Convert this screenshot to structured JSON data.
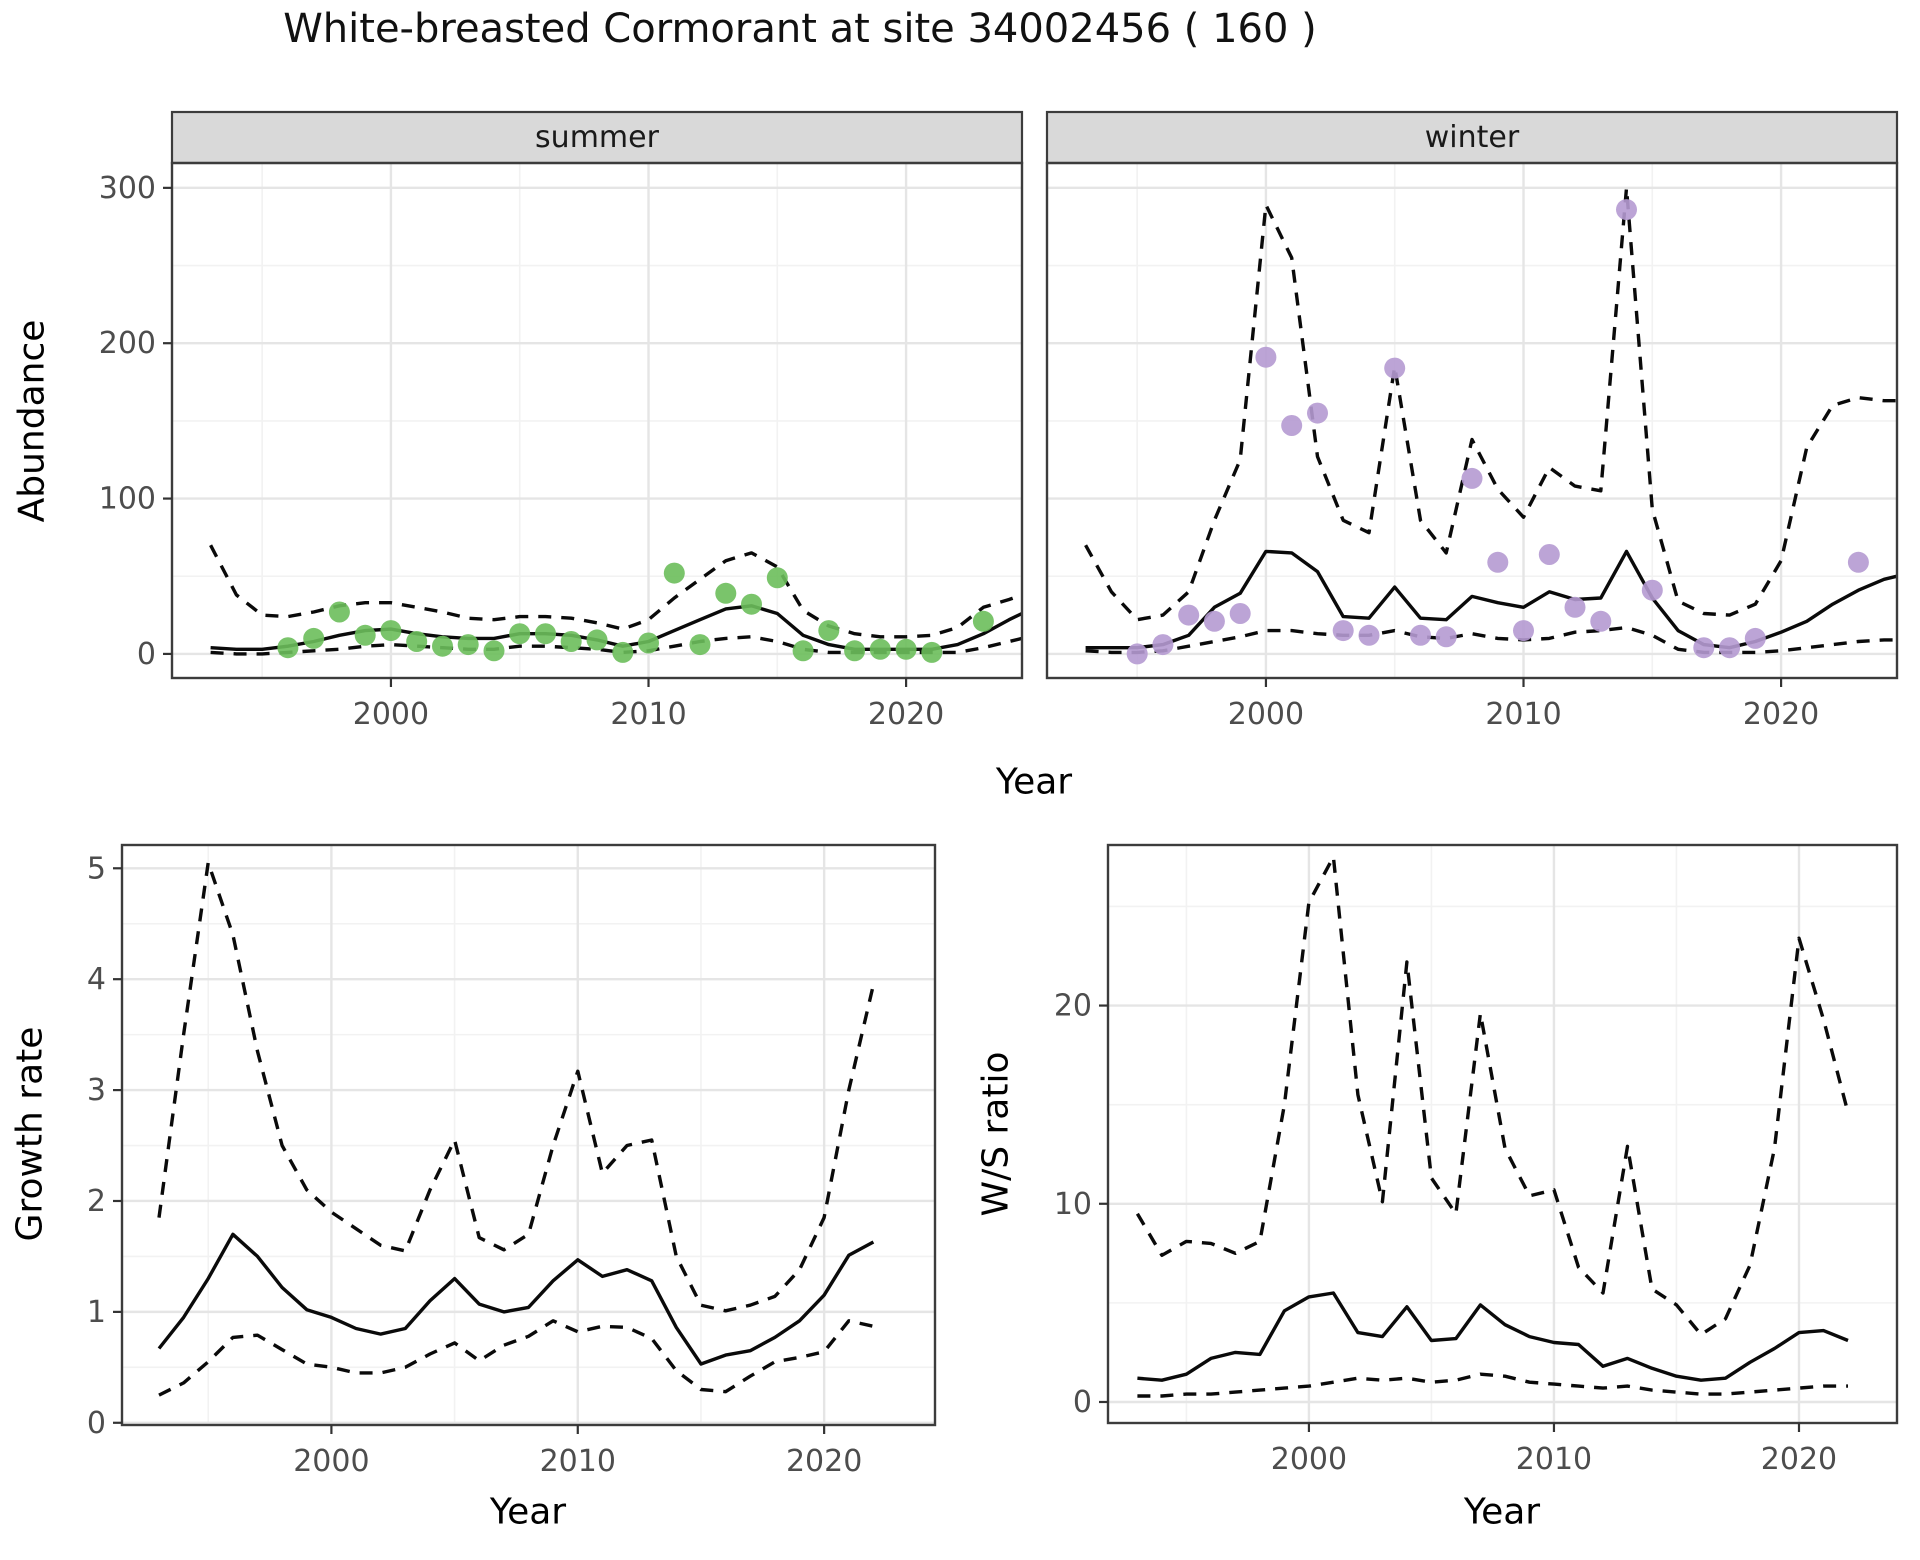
{
  "title": "White-breasted Cormorant at site 34002456 ( 160 )",
  "colors": {
    "summer_points": "#6CBE5B",
    "winter_points": "#B59AD2",
    "line": "#0a0a0a",
    "strip_fill": "#D9D9D9",
    "panel_border": "#3c3c3c",
    "grid_major": "#E5E5E5",
    "grid_minor": "#F2F2F2",
    "tick_text": "#4d4d4d"
  },
  "top_xlabel": "Year",
  "chart_data": {
    "type": "line",
    "description": "Four-panel population trend figure: seasonal abundance (observed points, modelled median solid line, dashed 95% credible band), growth rate and winter/summer ratio",
    "panels": [
      {
        "id": "abundance-summer",
        "facet_label": "summer",
        "ylabel": "Abundance",
        "xlabel": "Year",
        "xlim": [
          1991.5,
          2024.5
        ],
        "ylim": [
          -15.5,
          316
        ],
        "xticks": [
          2000,
          2010,
          2020
        ],
        "yticks": [
          0,
          100,
          200,
          300
        ],
        "x_minor": [
          1995,
          2005,
          2015
        ],
        "y_minor": [
          50,
          150,
          250
        ],
        "show_y_labels": true,
        "point_color": "#6CBE5B",
        "observations": {
          "years": [
            1996,
            1997,
            1998,
            1999,
            2000,
            2001,
            2002,
            2003,
            2004,
            2005,
            2006,
            2007,
            2008,
            2009,
            2010,
            2011,
            2012,
            2013,
            2014,
            2015,
            2016,
            2017,
            2018,
            2019,
            2020,
            2021,
            2023
          ],
          "values": [
            4,
            10,
            27,
            12,
            15,
            8,
            5,
            6,
            2,
            13,
            13,
            8,
            9,
            1,
            7,
            52,
            6,
            39,
            32,
            49,
            2,
            15,
            2,
            3,
            3,
            1,
            21
          ]
        },
        "median": {
          "years": [
            1993,
            1994,
            1995,
            1996,
            1997,
            1998,
            1999,
            2000,
            2001,
            2002,
            2003,
            2004,
            2005,
            2006,
            2007,
            2008,
            2009,
            2010,
            2011,
            2012,
            2013,
            2014,
            2015,
            2016,
            2017,
            2018,
            2019,
            2020,
            2021,
            2022,
            2023,
            2024,
            2024.5
          ],
          "values": [
            4,
            3,
            3,
            5,
            8,
            12,
            15,
            16,
            13,
            11,
            10,
            10,
            13,
            13,
            12,
            9,
            5,
            8,
            15,
            22,
            29,
            31,
            26,
            12,
            6,
            3,
            3,
            3,
            3,
            6,
            13,
            22,
            26
          ]
        },
        "ci_upper": {
          "years": [
            1993,
            1994,
            1995,
            1996,
            1997,
            1998,
            1999,
            2000,
            2001,
            2002,
            2003,
            2004,
            2005,
            2006,
            2007,
            2008,
            2009,
            2010,
            2011,
            2012,
            2013,
            2014,
            2015,
            2016,
            2017,
            2018,
            2019,
            2020,
            2021,
            2022,
            2023,
            2024,
            2024.5
          ],
          "values": [
            70,
            38,
            25,
            24,
            27,
            31,
            33,
            33,
            30,
            27,
            23,
            22,
            24,
            24,
            23,
            20,
            16,
            22,
            36,
            48,
            60,
            65,
            56,
            28,
            18,
            13,
            11,
            11,
            12,
            17,
            30,
            35,
            38
          ]
        },
        "ci_lower": {
          "years": [
            1993,
            1994,
            1995,
            1996,
            1997,
            1998,
            1999,
            2000,
            2001,
            2002,
            2003,
            2004,
            2005,
            2006,
            2007,
            2008,
            2009,
            2010,
            2011,
            2012,
            2013,
            2014,
            2015,
            2016,
            2017,
            2018,
            2019,
            2020,
            2021,
            2022,
            2023,
            2024,
            2024.5
          ],
          "values": [
            1,
            0,
            0,
            1,
            2,
            3,
            5,
            6,
            5,
            4,
            3,
            3,
            5,
            5,
            4,
            3,
            1,
            2,
            5,
            8,
            10,
            11,
            8,
            3,
            1,
            1,
            1,
            1,
            1,
            1,
            4,
            8,
            10
          ]
        }
      },
      {
        "id": "abundance-winter",
        "facet_label": "winter",
        "ylabel": "Abundance",
        "xlabel": "Year",
        "xlim": [
          1991.5,
          2024.5
        ],
        "ylim": [
          -15.5,
          316
        ],
        "xticks": [
          2000,
          2010,
          2020
        ],
        "yticks": [
          0,
          100,
          200,
          300
        ],
        "x_minor": [
          1995,
          2005,
          2015
        ],
        "y_minor": [
          50,
          150,
          250
        ],
        "show_y_labels": false,
        "point_color": "#B59AD2",
        "observations": {
          "years": [
            1995,
            1996,
            1997,
            1998,
            1999,
            2000,
            2001,
            2002,
            2003,
            2004,
            2005,
            2006,
            2007,
            2008,
            2009,
            2010,
            2011,
            2012,
            2013,
            2014,
            2015,
            2017,
            2018,
            2019,
            2023
          ],
          "values": [
            0,
            6,
            25,
            21,
            26,
            191,
            147,
            155,
            15,
            12,
            184,
            12,
            11,
            113,
            59,
            15,
            64,
            30,
            21,
            286,
            41,
            4,
            4,
            10,
            59
          ]
        },
        "median": {
          "years": [
            1993,
            1994,
            1995,
            1996,
            1997,
            1998,
            1999,
            2000,
            2001,
            2002,
            2003,
            2004,
            2005,
            2006,
            2007,
            2008,
            2009,
            2010,
            2011,
            2012,
            2013,
            2014,
            2015,
            2016,
            2017,
            2018,
            2019,
            2020,
            2021,
            2022,
            2023,
            2024,
            2024.5
          ],
          "values": [
            4,
            4,
            4,
            6,
            12,
            30,
            39,
            66,
            65,
            53,
            24,
            23,
            43,
            23,
            22,
            37,
            33,
            30,
            40,
            35,
            36,
            66,
            36,
            15,
            6,
            4,
            8,
            14,
            21,
            32,
            41,
            48,
            50
          ]
        },
        "ci_upper": {
          "years": [
            1993,
            1994,
            1995,
            1996,
            1997,
            1998,
            1999,
            2000,
            2001,
            2002,
            2003,
            2004,
            2005,
            2006,
            2007,
            2008,
            2009,
            2010,
            2011,
            2012,
            2013,
            2014,
            2015,
            2016,
            2017,
            2018,
            2019,
            2020,
            2021,
            2022,
            2023,
            2024,
            2024.5
          ],
          "values": [
            70,
            40,
            22,
            25,
            40,
            86,
            125,
            289,
            255,
            127,
            86,
            78,
            185,
            86,
            65,
            138,
            106,
            88,
            120,
            108,
            105,
            300,
            93,
            34,
            26,
            25,
            32,
            60,
            133,
            160,
            165,
            163,
            163
          ]
        },
        "ci_lower": {
          "years": [
            1993,
            1994,
            1995,
            1996,
            1997,
            1998,
            1999,
            2000,
            2001,
            2002,
            2003,
            2004,
            2005,
            2006,
            2007,
            2008,
            2009,
            2010,
            2011,
            2012,
            2013,
            2014,
            2015,
            2016,
            2017,
            2018,
            2019,
            2020,
            2021,
            2022,
            2023,
            2024,
            2024.5
          ],
          "values": [
            2,
            1,
            1,
            2,
            5,
            8,
            11,
            15,
            15,
            13,
            12,
            12,
            15,
            11,
            10,
            13,
            10,
            9,
            10,
            14,
            15,
            17,
            12,
            3,
            1,
            1,
            1,
            2,
            4,
            6,
            8,
            9,
            9
          ]
        }
      },
      {
        "id": "growth-rate",
        "facet_label": null,
        "ylabel": "Growth rate",
        "xlabel": "Year",
        "xlim": [
          1991.5,
          2024.5
        ],
        "ylim": [
          -0.02,
          5.21
        ],
        "xticks": [
          2000,
          2010,
          2020
        ],
        "yticks": [
          0,
          1,
          2,
          3,
          4,
          5
        ],
        "x_minor": [
          1995,
          2005,
          2015
        ],
        "y_minor": [
          0.5,
          1.5,
          2.5,
          3.5,
          4.5
        ],
        "show_y_labels": true,
        "point_color": null,
        "observations": {
          "years": [],
          "values": []
        },
        "median": {
          "years": [
            1993,
            1994,
            1995,
            1996,
            1997,
            1998,
            1999,
            2000,
            2001,
            2002,
            2003,
            2004,
            2005,
            2006,
            2007,
            2008,
            2009,
            2010,
            2011,
            2012,
            2013,
            2014,
            2015,
            2016,
            2017,
            2018,
            2019,
            2020,
            2021,
            2022
          ],
          "values": [
            0.67,
            0.95,
            1.3,
            1.7,
            1.5,
            1.22,
            1.02,
            0.95,
            0.85,
            0.8,
            0.85,
            1.1,
            1.3,
            1.07,
            1.0,
            1.04,
            1.28,
            1.47,
            1.32,
            1.38,
            1.28,
            0.86,
            0.53,
            0.61,
            0.65,
            0.77,
            0.92,
            1.15,
            1.51,
            1.63
          ]
        },
        "ci_upper": {
          "years": [
            1993,
            1994,
            1995,
            1996,
            1997,
            1998,
            1999,
            2000,
            2001,
            2002,
            2003,
            2004,
            2005,
            2006,
            2007,
            2008,
            2009,
            2010,
            2011,
            2012,
            2013,
            2014,
            2015,
            2016,
            2017,
            2018,
            2019,
            2020,
            2021,
            2022
          ],
          "values": [
            1.85,
            3.5,
            5.05,
            4.4,
            3.35,
            2.5,
            2.1,
            1.9,
            1.75,
            1.6,
            1.55,
            2.1,
            2.55,
            1.67,
            1.56,
            1.7,
            2.5,
            3.17,
            2.25,
            2.5,
            2.55,
            1.5,
            1.06,
            1.01,
            1.06,
            1.14,
            1.38,
            1.85,
            3.0,
            3.95
          ]
        },
        "ci_lower": {
          "years": [
            1993,
            1994,
            1995,
            1996,
            1997,
            1998,
            1999,
            2000,
            2001,
            2002,
            2003,
            2004,
            2005,
            2006,
            2007,
            2008,
            2009,
            2010,
            2011,
            2012,
            2013,
            2014,
            2015,
            2016,
            2017,
            2018,
            2019,
            2020,
            2021,
            2022
          ],
          "values": [
            0.25,
            0.36,
            0.55,
            0.77,
            0.79,
            0.66,
            0.53,
            0.5,
            0.45,
            0.45,
            0.5,
            0.62,
            0.72,
            0.56,
            0.7,
            0.78,
            0.92,
            0.82,
            0.87,
            0.86,
            0.76,
            0.47,
            0.3,
            0.28,
            0.42,
            0.55,
            0.59,
            0.64,
            0.92,
            0.87
          ]
        }
      },
      {
        "id": "ws-ratio",
        "facet_label": null,
        "ylabel": "W/S ratio",
        "xlabel": "Year",
        "xlim": [
          1991.8,
          2024.0
        ],
        "ylim": [
          -1.06,
          28.1
        ],
        "xticks": [
          2000,
          2010,
          2020
        ],
        "yticks": [
          0,
          10,
          20
        ],
        "x_minor": [
          1995,
          2005,
          2015
        ],
        "y_minor": [
          5,
          15,
          25
        ],
        "show_y_labels": true,
        "point_color": null,
        "observations": {
          "years": [],
          "values": []
        },
        "median": {
          "years": [
            1993,
            1994,
            1995,
            1996,
            1997,
            1998,
            1999,
            2000,
            2001,
            2002,
            2003,
            2004,
            2005,
            2006,
            2007,
            2008,
            2009,
            2010,
            2011,
            2012,
            2013,
            2014,
            2015,
            2016,
            2017,
            2018,
            2019,
            2020,
            2021,
            2022
          ],
          "values": [
            1.2,
            1.1,
            1.4,
            2.2,
            2.5,
            2.4,
            4.6,
            5.3,
            5.5,
            3.5,
            3.3,
            4.8,
            3.1,
            3.2,
            4.9,
            3.9,
            3.3,
            3.0,
            2.9,
            1.8,
            2.2,
            1.7,
            1.3,
            1.1,
            1.2,
            2.0,
            2.7,
            3.5,
            3.6,
            3.1
          ]
        },
        "ci_upper": {
          "years": [
            1993,
            1994,
            1995,
            1996,
            1997,
            1998,
            1999,
            2000,
            2001,
            2002,
            2003,
            2004,
            2005,
            2006,
            2007,
            2008,
            2009,
            2010,
            2011,
            2012,
            2013,
            2014,
            2015,
            2016,
            2017,
            2018,
            2019,
            2020,
            2021,
            2022
          ],
          "values": [
            9.5,
            7.4,
            8.1,
            8.0,
            7.5,
            8.1,
            15.0,
            25.2,
            27.5,
            15.5,
            10.1,
            22.2,
            11.3,
            9.5,
            19.6,
            12.8,
            10.4,
            10.7,
            6.8,
            5.5,
            12.9,
            5.7,
            4.9,
            3.4,
            4.2,
            6.9,
            12.8,
            23.4,
            19.3,
            14.6
          ]
        },
        "ci_lower": {
          "years": [
            1993,
            1994,
            1995,
            1996,
            1997,
            1998,
            1999,
            2000,
            2001,
            2002,
            2003,
            2004,
            2005,
            2006,
            2007,
            2008,
            2009,
            2010,
            2011,
            2012,
            2013,
            2014,
            2015,
            2016,
            2017,
            2018,
            2019,
            2020,
            2021,
            2022
          ],
          "values": [
            0.3,
            0.3,
            0.4,
            0.4,
            0.5,
            0.6,
            0.7,
            0.8,
            1.0,
            1.2,
            1.1,
            1.2,
            1.0,
            1.1,
            1.4,
            1.3,
            1.0,
            0.9,
            0.8,
            0.7,
            0.8,
            0.6,
            0.5,
            0.4,
            0.4,
            0.5,
            0.6,
            0.7,
            0.8,
            0.8
          ]
        }
      }
    ]
  }
}
